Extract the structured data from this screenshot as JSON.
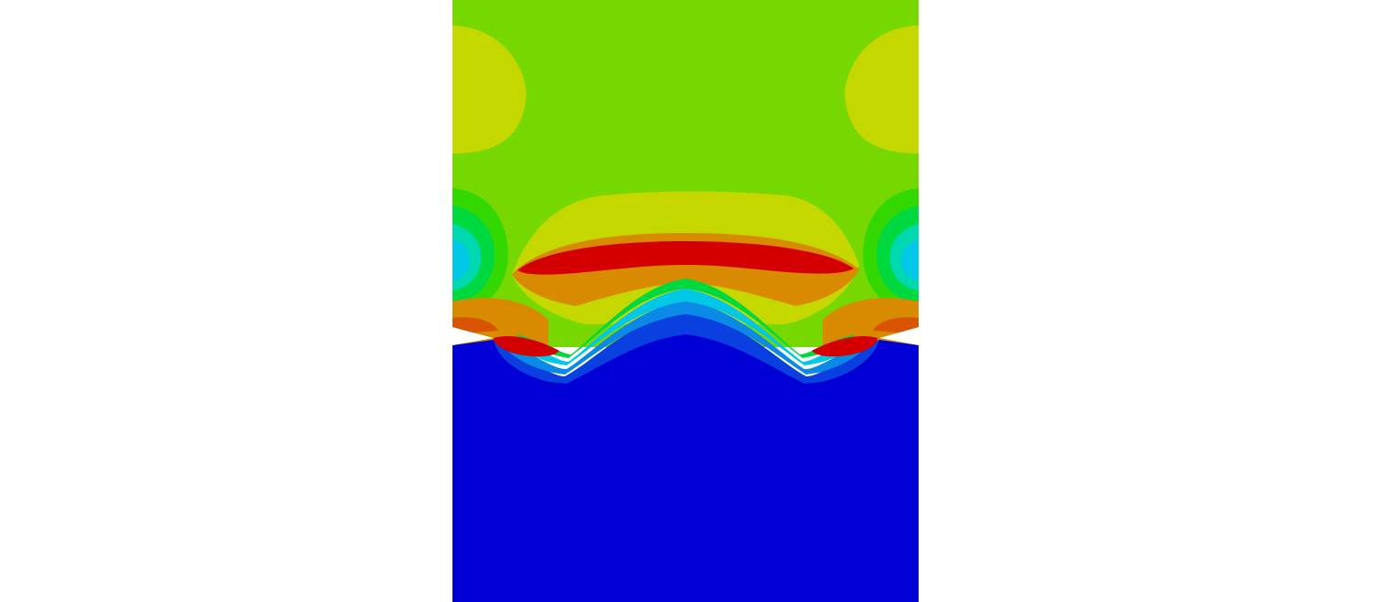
{
  "plot": {
    "kind": "finite-element contour field",
    "background": "#ffffff",
    "colormap": [
      "#0000d6",
      "#0a3fe0",
      "#0a8ae6",
      "#00c8e6",
      "#00d8b0",
      "#00d840",
      "#32d800",
      "#76d800",
      "#c4d800",
      "#d8b000",
      "#d88a00",
      "#d85400",
      "#d40000"
    ],
    "regions": {
      "upper_field": "#76d800",
      "lower_field": "#0000d6",
      "side_lobes_upper": "#c4d800",
      "hot_band": "#d40000"
    }
  }
}
